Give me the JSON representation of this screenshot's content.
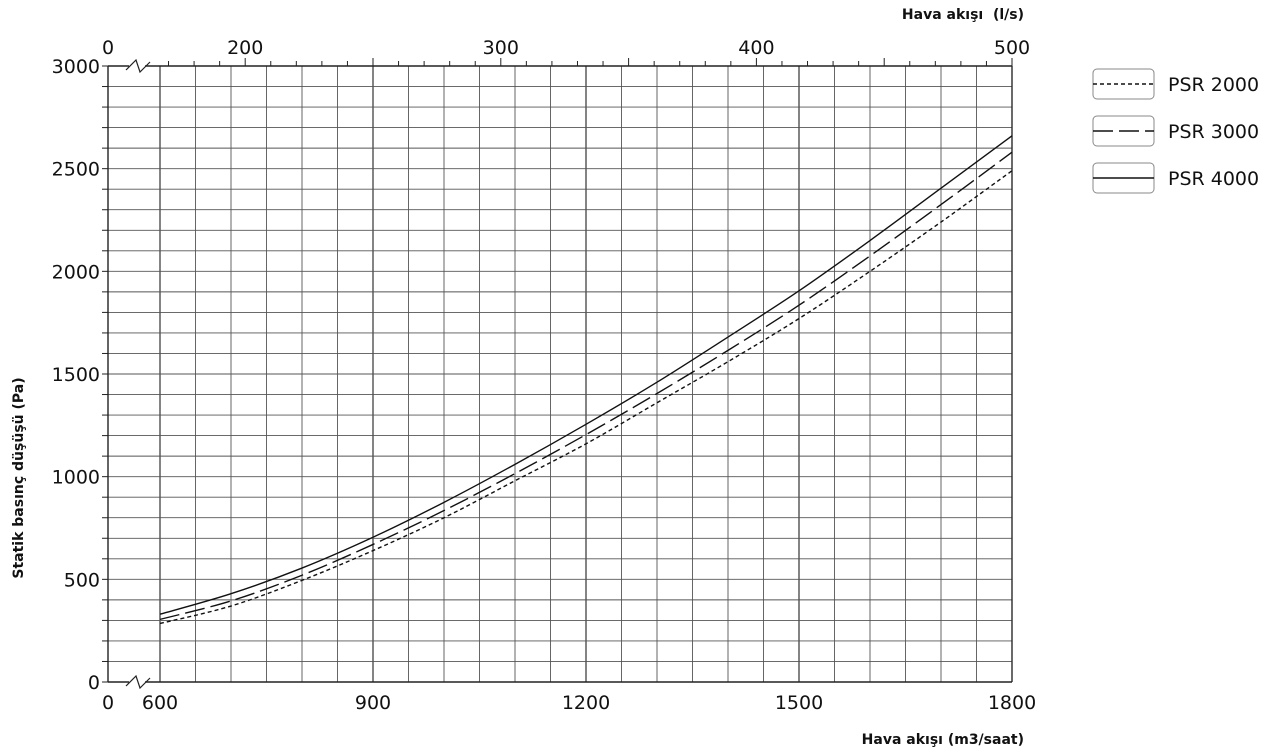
{
  "chart_data": {
    "type": "line",
    "xlabel": "Hava akışı (m3/saat)",
    "x2label": "Hava akışı  (l/s)",
    "ylabel": "Statik basınç düşüşü (Pa)",
    "xlim": [
      600,
      1800
    ],
    "x_axis_break_label": "0",
    "x_ticks": [
      600,
      900,
      1200,
      1500,
      1800
    ],
    "x2lim": [
      166.67,
      500
    ],
    "x2_axis_break_label": "0",
    "x2_ticks": [
      200,
      300,
      400,
      500
    ],
    "ylim": [
      0,
      3000
    ],
    "y_ticks": [
      0,
      500,
      1000,
      1500,
      2000,
      2500,
      3000
    ],
    "grid": true,
    "legend_position": "right",
    "x": [
      600,
      700,
      800,
      900,
      1000,
      1100,
      1200,
      1300,
      1400,
      1500,
      1600,
      1700,
      1800
    ],
    "series": [
      {
        "name": "PSR 2000",
        "style": "dotted",
        "values": [
          285,
          370,
          495,
          640,
          800,
          980,
          1160,
          1360,
          1560,
          1770,
          2000,
          2240,
          2490
        ]
      },
      {
        "name": "PSR 3000",
        "style": "dashed",
        "values": [
          305,
          395,
          520,
          670,
          835,
          1015,
          1205,
          1405,
          1615,
          1835,
          2075,
          2325,
          2580
        ]
      },
      {
        "name": "PSR 4000",
        "style": "solid",
        "values": [
          330,
          430,
          555,
          705,
          875,
          1060,
          1255,
          1460,
          1680,
          1905,
          2150,
          2405,
          2660
        ]
      }
    ]
  }
}
